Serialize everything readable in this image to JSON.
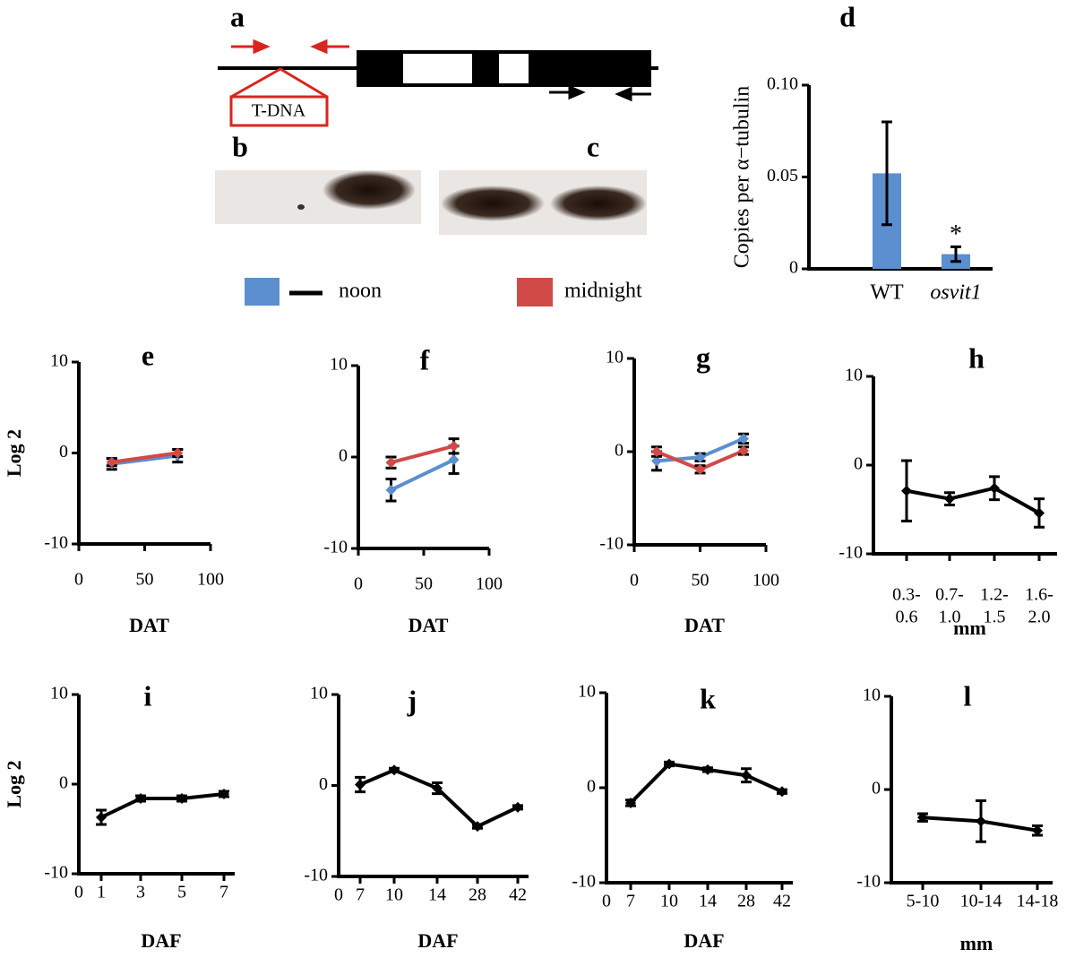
{
  "figure": {
    "gene_diagram": {
      "label": "a",
      "insert": "T-DNA"
    },
    "blots": [
      {
        "label": "b"
      },
      {
        "label": "c"
      }
    ]
  },
  "chart_data": [
    {
      "type": "bar",
      "title": "d",
      "ylabel": "Copies per α−tubulin",
      "categories": [
        "WT",
        "osvit1"
      ],
      "values": [
        0.052,
        0.008
      ],
      "errors": [
        0.028,
        0.004
      ],
      "color": "#5b8fd0",
      "ylim": [
        0,
        0.1
      ],
      "yticks": [
        0,
        {
          "value": 0.05,
          "label": "0.05"
        },
        {
          "value": 0.1,
          "label": "0.10"
        }
      ],
      "annotation": "*"
    },
    {
      "type": "line",
      "title": "e",
      "ylabel": "Log 2",
      "xlabel": "DAT",
      "xlim": [
        0,
        100
      ],
      "xticks": [
        0,
        50,
        100
      ],
      "ylim": [
        -10,
        10
      ],
      "yticks": [
        -10,
        0,
        10
      ],
      "x": [
        25,
        75
      ],
      "series": [
        {
          "name": "noon",
          "color": "#5b8fd0",
          "values": [
            -1.2,
            -0.3
          ],
          "errors": [
            0.6,
            0.7
          ]
        },
        {
          "name": "midnight",
          "color": "#d04a48",
          "values": [
            -1.0,
            0.0
          ],
          "errors": [
            0.4,
            0.4
          ]
        }
      ]
    },
    {
      "type": "line",
      "title": "f",
      "xlabel": "DAT",
      "xlim": [
        0,
        100
      ],
      "xticks": [
        0,
        50,
        100
      ],
      "ylim": [
        -10,
        10
      ],
      "yticks": [
        -10,
        0,
        10
      ],
      "x": [
        25,
        73
      ],
      "series": [
        {
          "name": "noon",
          "color": "#5b8fd0",
          "values": [
            -3.6,
            -0.3
          ],
          "errors": [
            1.2,
            1.5
          ]
        },
        {
          "name": "midnight",
          "color": "#d04a48",
          "values": [
            -0.6,
            1.2
          ],
          "errors": [
            0.6,
            0.8
          ]
        }
      ]
    },
    {
      "type": "line",
      "title": "g",
      "xlabel": "DAT",
      "xlim": [
        0,
        100
      ],
      "xticks": [
        0,
        50,
        100
      ],
      "ylim": [
        -10,
        10
      ],
      "yticks": [
        -10,
        0,
        10
      ],
      "x": [
        17,
        50,
        83
      ],
      "series": [
        {
          "name": "noon",
          "color": "#5b8fd0",
          "values": [
            -1.0,
            -0.6,
            1.4
          ],
          "errors": [
            1.0,
            0.4,
            0.5
          ]
        },
        {
          "name": "midnight",
          "color": "#d04a48",
          "values": [
            0.0,
            -1.9,
            0.1
          ],
          "errors": [
            0.5,
            0.4,
            0.4
          ]
        }
      ]
    },
    {
      "type": "line",
      "title": "h",
      "xlabel": "mm",
      "ylim": [
        -10,
        10
      ],
      "yticks": [
        -10,
        0,
        10
      ],
      "categories": [
        [
          "0.3-",
          "0.6"
        ],
        [
          "0.7-",
          "1.0"
        ],
        [
          "1.2-",
          "1.5"
        ],
        [
          "1.6-",
          "2.0"
        ]
      ],
      "series": [
        {
          "color": "#000000",
          "values": [
            -2.9,
            -3.8,
            -2.6,
            -5.4
          ],
          "errors": [
            3.4,
            0.7,
            1.3,
            1.6
          ]
        }
      ]
    },
    {
      "type": "line",
      "title": "i",
      "ylabel": "Log 2",
      "xlabel": "DAF",
      "ylim": [
        -10,
        10
      ],
      "yticks": [
        -10,
        0,
        10
      ],
      "x_origin_label": "0",
      "categories": [
        "1",
        "3",
        "5",
        "7"
      ],
      "series": [
        {
          "color": "#000000",
          "values": [
            -3.7,
            -1.6,
            -1.6,
            -1.1
          ],
          "errors": [
            0.8,
            0.3,
            0.3,
            0.3
          ]
        }
      ]
    },
    {
      "type": "line",
      "title": "j",
      "xlabel": "DAF",
      "ylim": [
        -10,
        10
      ],
      "yticks": [
        -10,
        0,
        10
      ],
      "x_origin_label": "0",
      "categories": [
        "7",
        "10",
        "14",
        "28",
        "42"
      ],
      "series": [
        {
          "color": "#000000",
          "values": [
            0.1,
            1.7,
            -0.3,
            -4.5,
            -2.4
          ],
          "errors": [
            0.8,
            0.2,
            0.6,
            0.2,
            0.2
          ]
        }
      ]
    },
    {
      "type": "line",
      "title": "k",
      "xlabel": "DAF",
      "ylim": [
        -10,
        10
      ],
      "yticks": [
        -10,
        0,
        10
      ],
      "x_origin_label": "0",
      "categories": [
        "7",
        "10",
        "14",
        "28",
        "42"
      ],
      "series": [
        {
          "color": "#000000",
          "values": [
            -1.6,
            2.5,
            1.9,
            1.3,
            -0.4
          ],
          "errors": [
            0.3,
            0.2,
            0.2,
            0.7,
            0.2
          ]
        }
      ]
    },
    {
      "type": "line",
      "title": "l",
      "xlabel": "mm",
      "ylim": [
        -10,
        10
      ],
      "yticks": [
        -10,
        0,
        10
      ],
      "categories": [
        "5-10",
        "10-14",
        "14-18"
      ],
      "series": [
        {
          "color": "#000000",
          "values": [
            -3.0,
            -3.4,
            -4.4
          ],
          "errors": [
            0.4,
            2.2,
            0.5
          ]
        }
      ]
    }
  ]
}
